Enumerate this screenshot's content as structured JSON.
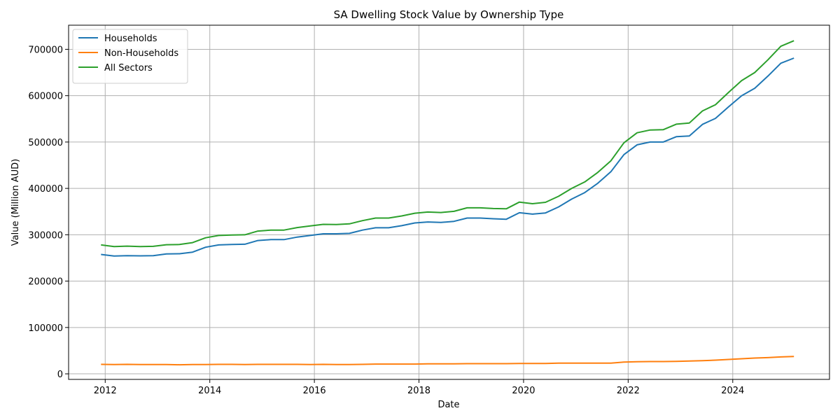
{
  "chart_data": {
    "type": "line",
    "title": "SA Dwelling Stock Value by Ownership Type",
    "xlabel": "Date",
    "ylabel": "Value (Million AUD)",
    "xlim": [
      2011.3,
      2025.85
    ],
    "ylim": [
      -12000,
      752000
    ],
    "xticks": [
      2012,
      2014,
      2016,
      2018,
      2020,
      2022,
      2024
    ],
    "yticks": [
      0,
      100000,
      200000,
      300000,
      400000,
      500000,
      600000,
      700000
    ],
    "grid": true,
    "legend_position": "top-left",
    "x": [
      2011.92,
      2012.17,
      2012.42,
      2012.67,
      2012.92,
      2013.17,
      2013.42,
      2013.67,
      2013.92,
      2014.17,
      2014.42,
      2014.67,
      2014.92,
      2015.17,
      2015.42,
      2015.67,
      2015.92,
      2016.17,
      2016.42,
      2016.67,
      2016.92,
      2017.17,
      2017.42,
      2017.67,
      2017.92,
      2018.17,
      2018.42,
      2018.67,
      2018.92,
      2019.17,
      2019.42,
      2019.67,
      2019.92,
      2020.17,
      2020.42,
      2020.67,
      2020.92,
      2021.17,
      2021.42,
      2021.67,
      2021.92,
      2022.17,
      2022.42,
      2022.67,
      2022.92,
      2023.17,
      2023.42,
      2023.67,
      2023.92,
      2024.17,
      2024.42,
      2024.67,
      2024.92,
      2025.17
    ],
    "series": [
      {
        "name": "Households",
        "color": "#1f77b4",
        "values": [
          257500,
          254000,
          255000,
          254500,
          255000,
          258500,
          259000,
          262500,
          273000,
          278000,
          279000,
          279500,
          287500,
          289500,
          289500,
          295000,
          298500,
          302000,
          302000,
          303000,
          310000,
          315000,
          315000,
          319500,
          325500,
          327500,
          326500,
          329000,
          336000,
          336000,
          334500,
          333500,
          347500,
          344500,
          347000,
          360000,
          377000,
          391000,
          411000,
          436000,
          473000,
          494000,
          500000,
          500000,
          511500,
          513000,
          538000,
          551000,
          576000,
          600000,
          616000,
          642000,
          670000,
          681000
        ]
      },
      {
        "name": "Non-Households",
        "color": "#ff7f0e",
        "values": [
          20500,
          20000,
          20500,
          20000,
          20000,
          20000,
          19500,
          20000,
          20000,
          20500,
          20500,
          20000,
          20500,
          20500,
          20500,
          20500,
          20000,
          20500,
          20000,
          20000,
          20500,
          21000,
          21000,
          21000,
          21000,
          21500,
          21500,
          21500,
          22000,
          22000,
          22000,
          22000,
          22500,
          22500,
          22500,
          23000,
          23000,
          23000,
          23000,
          23000,
          25500,
          26000,
          26500,
          26500,
          27000,
          27500,
          28500,
          29500,
          31000,
          32500,
          34000,
          35000,
          36500,
          37500
        ]
      },
      {
        "name": "All Sectors",
        "color": "#2ca02c",
        "values": [
          278000,
          274500,
          275500,
          274500,
          275000,
          278500,
          279000,
          283000,
          293500,
          298500,
          299500,
          300000,
          308000,
          310000,
          310000,
          315500,
          319000,
          322500,
          322000,
          323500,
          330500,
          336000,
          336000,
          340500,
          346500,
          349000,
          348000,
          350500,
          358000,
          358000,
          356500,
          356000,
          370500,
          367000,
          370000,
          383000,
          400000,
          414000,
          434500,
          459500,
          498500,
          520000,
          526000,
          526500,
          538500,
          541000,
          567000,
          580500,
          607000,
          632500,
          650000,
          677000,
          706500,
          718500
        ]
      }
    ]
  }
}
